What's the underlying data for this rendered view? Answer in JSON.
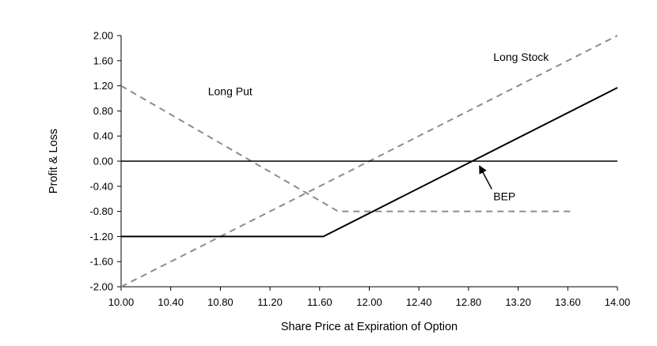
{
  "chart_data": {
    "type": "line",
    "title": "",
    "xlabel": "Share Price at Expiration of Option",
    "ylabel": "Profit & Loss",
    "xlim": [
      10.0,
      14.0
    ],
    "ylim": [
      -2.0,
      2.0
    ],
    "x_ticks": [
      "10.00",
      "10.40",
      "10.80",
      "11.20",
      "11.60",
      "12.00",
      "12.40",
      "12.80",
      "13.20",
      "13.60",
      "14.00"
    ],
    "y_ticks": [
      "2.00",
      "1.60",
      "1.20",
      "0.80",
      "0.40",
      "0.00",
      "-0.40",
      "-0.80",
      "-1.20",
      "-1.60",
      "-2.00"
    ],
    "grid": false,
    "series": [
      {
        "name": "Long Stock",
        "style": "dashed",
        "color": "#8c8c8c",
        "points": [
          [
            10.0,
            -2.0
          ],
          [
            14.0,
            2.0
          ]
        ]
      },
      {
        "name": "Long Put",
        "style": "dashed",
        "color": "#8c8c8c",
        "points": [
          [
            10.0,
            1.2
          ],
          [
            11.75,
            -0.8
          ],
          [
            13.65,
            -0.8
          ]
        ]
      },
      {
        "name": "",
        "style": "solid",
        "color": "#000000",
        "points": [
          [
            10.0,
            -1.2
          ],
          [
            11.63,
            -1.2
          ],
          [
            14.0,
            1.17
          ]
        ]
      },
      {
        "name": "",
        "style": "solid",
        "color": "#000000",
        "points": [
          [
            10.0,
            0.0
          ],
          [
            14.0,
            0.0
          ]
        ]
      }
    ],
    "annotations": [
      {
        "text": "Long Stock",
        "x": 13.0,
        "y": 1.6
      },
      {
        "text": "Long Put",
        "x": 10.7,
        "y": 1.05
      },
      {
        "text": "BEP",
        "x": 13.0,
        "y": -0.62,
        "arrow_to": [
          12.85,
          0.0
        ]
      }
    ]
  }
}
